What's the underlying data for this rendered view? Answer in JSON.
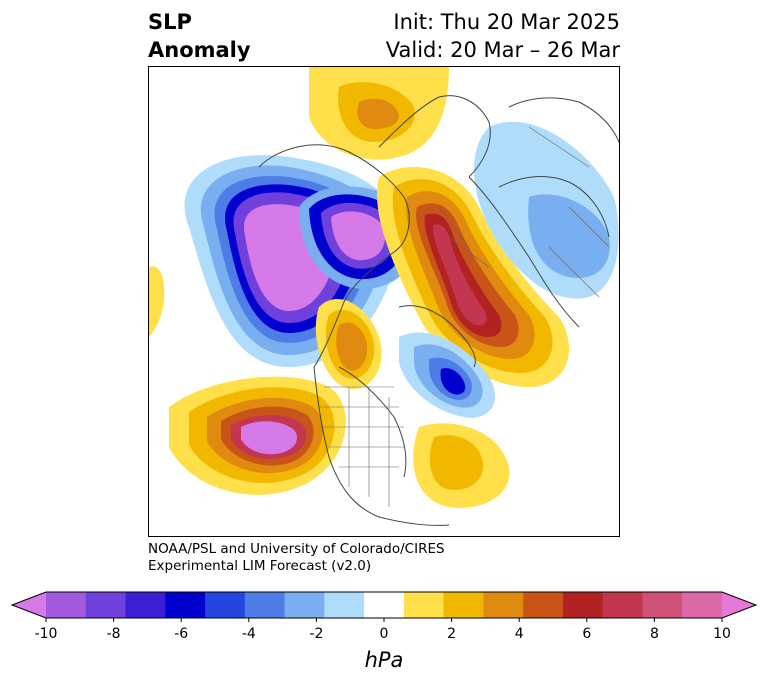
{
  "header": {
    "title_line1": "SLP",
    "title_line2": "Anomaly",
    "init": "Init: Thu 20 Mar 2025",
    "valid": "Valid: 20 Mar – 26 Mar"
  },
  "credit": {
    "line1": "NOAA/PSL and University of Colorado/CIRES",
    "line2": "Experimental LIM Forecast (v2.0)"
  },
  "colorbar": {
    "ticks": [
      "-10",
      "-8",
      "-6",
      "-4",
      "-2",
      "0",
      "2",
      "4",
      "6",
      "8",
      "10"
    ],
    "units": "hPa",
    "colors": [
      "#d57ae8",
      "#a259e0",
      "#7040dc",
      "#3a1fd6",
      "#0000cf",
      "#2545e0",
      "#4f7de8",
      "#79aef0",
      "#aedcfa",
      "#ffffff",
      "#ffe04a",
      "#f2b800",
      "#e08a10",
      "#c85418",
      "#b22222",
      "#c23650",
      "#d05278",
      "#dc68a8",
      "#e878d8"
    ]
  },
  "map_features": {
    "negative_centers": [
      "north-pacific-low",
      "arctic-canada-low",
      "hudson-bay-low",
      "north-atlantic-low",
      "eastern-pacific-low"
    ],
    "positive_centers": [
      "greenland-ridge",
      "scandinavia-russia-high",
      "siberia-high",
      "eastern-pacific-high",
      "western-atlantic-high"
    ]
  }
}
